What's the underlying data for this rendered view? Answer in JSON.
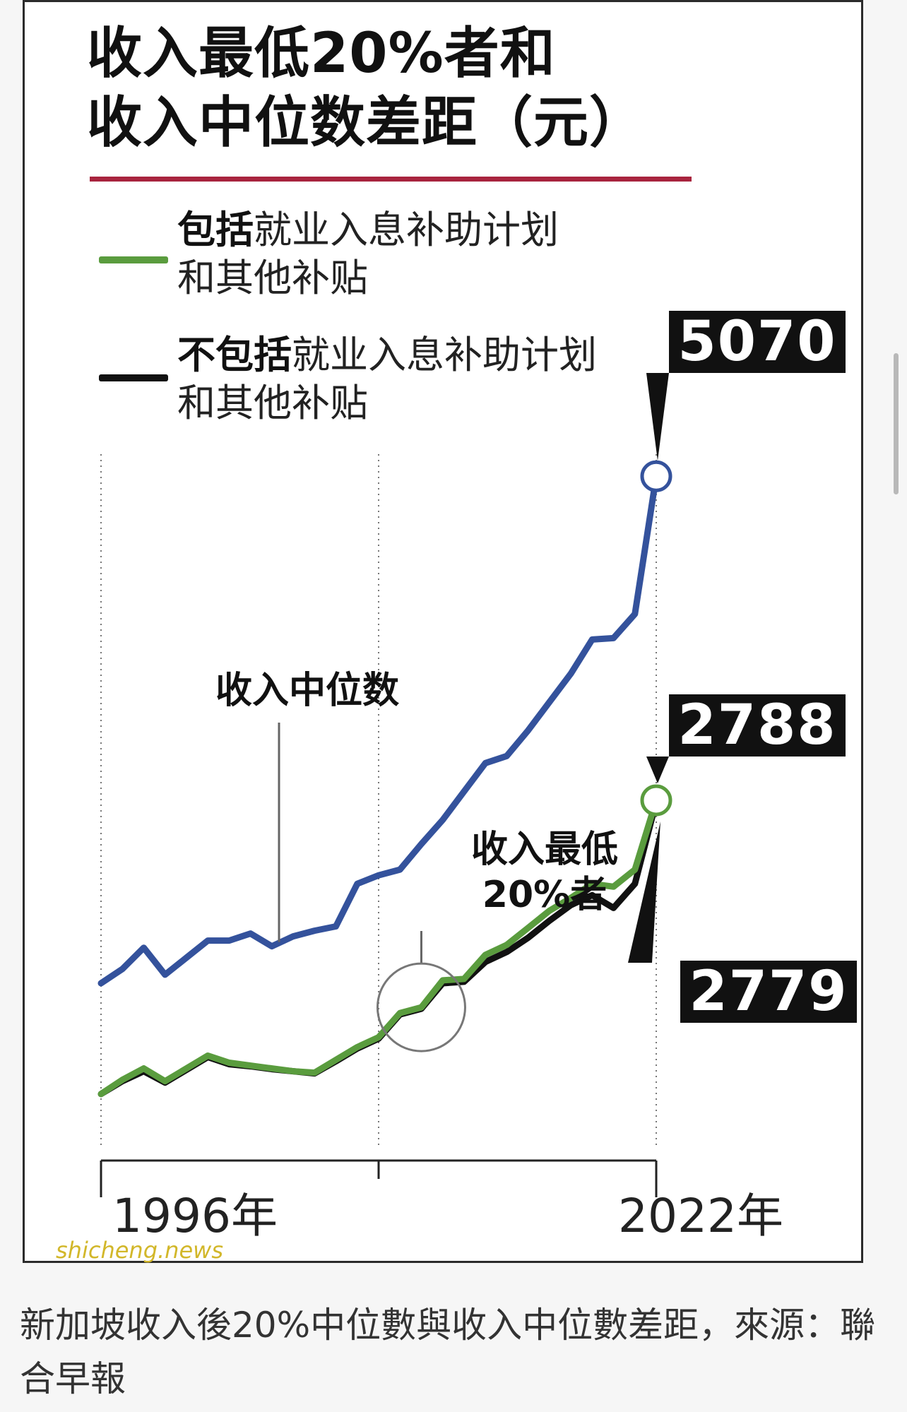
{
  "chart_data": {
    "type": "line",
    "title_lines": [
      "收入最低20%者和",
      "收入中位数差距（元）"
    ],
    "legend": [
      {
        "bold": "包括",
        "text": "就业入息补助计划",
        "text2": "和其他补贴",
        "color": "#5a9c3e"
      },
      {
        "bold": "不包括",
        "text": "就业入息补助计划",
        "text2": "和其他补贴",
        "color": "#111111"
      }
    ],
    "x_labels": {
      "start": "1996年",
      "end": "2022年"
    },
    "x": [
      1996,
      1997,
      1998,
      1999,
      2000,
      2001,
      2002,
      2003,
      2004,
      2005,
      2006,
      2007,
      2008,
      2009,
      2010,
      2011,
      2012,
      2013,
      2014,
      2015,
      2016,
      2017,
      2018,
      2019,
      2020,
      2021,
      2022
    ],
    "ylim": [
      500,
      5300
    ],
    "series": [
      {
        "name": "收入中位数",
        "color": "#34529c",
        "values": [
          1500,
          1600,
          1750,
          1560,
          1680,
          1800,
          1800,
          1850,
          1760,
          1830,
          1870,
          1900,
          2200,
          2260,
          2300,
          2480,
          2650,
          2850,
          3050,
          3100,
          3280,
          3480,
          3680,
          3920,
          3930,
          4100,
          5070
        ]
      },
      {
        "name": "包括就业入息补助计划和其他补贴",
        "color": "#5a9c3e",
        "values": [
          720,
          820,
          900,
          810,
          900,
          990,
          940,
          920,
          900,
          880,
          870,
          960,
          1050,
          1120,
          1290,
          1330,
          1520,
          1530,
          1700,
          1770,
          1890,
          2010,
          2100,
          2200,
          2180,
          2300,
          2788
        ]
      },
      {
        "name": "不包括就业入息补助计划和其他补贴",
        "color": "#111111",
        "values": [
          720,
          810,
          880,
          800,
          890,
          980,
          930,
          915,
          895,
          880,
          865,
          950,
          1040,
          1110,
          1280,
          1320,
          1500,
          1510,
          1650,
          1720,
          1820,
          1940,
          2050,
          2120,
          2030,
          2200,
          2779
        ]
      }
    ],
    "annotations": {
      "median_label": "收入中位数",
      "lowest_label_line1": "收入最低",
      "lowest_label_line2": "20%者",
      "median_end_value": "5070",
      "with_support_end_value": "2788",
      "without_support_end_value": "2779"
    }
  },
  "watermark": "shicheng.news",
  "caption": "新加坡收入後20%中位數與收入中位數差距，來源：聯合早報"
}
